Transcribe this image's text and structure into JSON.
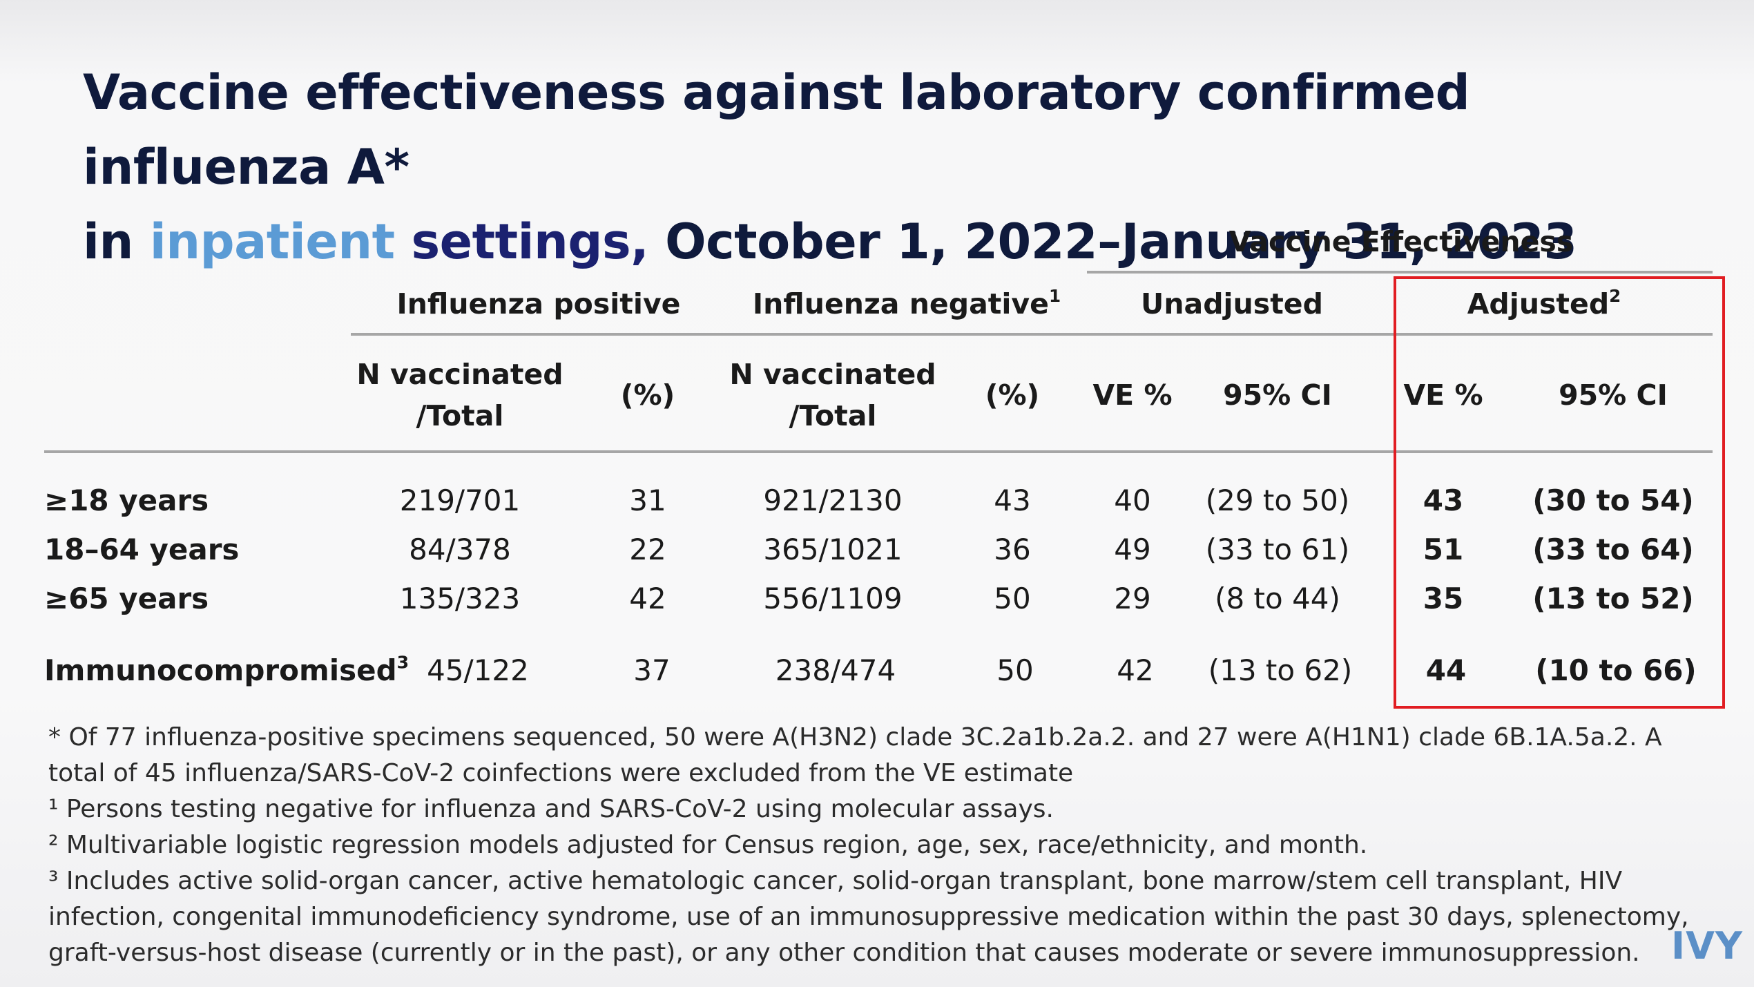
{
  "title": {
    "line1": "Vaccine effectiveness against laboratory confirmed influenza A*",
    "line2_prefix": "in ",
    "line2_highlight": "inpatient",
    "line2_settings": " settings,",
    "line2_suffix": " October 1, 2022–January 31, 2023"
  },
  "headers": {
    "ve_group": "Vaccine Effectiveness",
    "flu_pos": "Influenza positive",
    "flu_neg": "Influenza negative",
    "flu_neg_sup": "1",
    "unadjusted": "Unadjusted",
    "adjusted": "Adjusted",
    "adjusted_sup": "2",
    "n_vacc_line1": "N vaccinated",
    "n_vacc_line2": "/Total",
    "pct": "(%)",
    "ve_pct": "VE %",
    "ci": "95% CI"
  },
  "rows": [
    {
      "label": "≥18 years",
      "label_sup": "",
      "pos": "219/701",
      "pos_pct": "31",
      "neg": "921/2130",
      "neg_pct": "43",
      "unadj_ve": "40",
      "unadj_ci": "(29 to 50)",
      "adj_ve": "43",
      "adj_ci": "(30 to 54)"
    },
    {
      "label": "18–64 years",
      "label_sup": "",
      "pos": "84/378",
      "pos_pct": "22",
      "neg": "365/1021",
      "neg_pct": "36",
      "unadj_ve": "49",
      "unadj_ci": "(33 to 61)",
      "adj_ve": "51",
      "adj_ci": "(33 to 64)"
    },
    {
      "label": "≥65 years",
      "label_sup": "",
      "pos": "135/323",
      "pos_pct": "42",
      "neg": "556/1109",
      "neg_pct": "50",
      "unadj_ve": "29",
      "unadj_ci": "(8 to 44)",
      "adj_ve": "35",
      "adj_ci": "(13 to 52)"
    },
    {
      "label": "Immunocompromised",
      "label_sup": "3",
      "pos": "45/122",
      "pos_pct": "37",
      "neg": "238/474",
      "neg_pct": "50",
      "unadj_ve": "42",
      "unadj_ci": "(13 to 62)",
      "adj_ve": "44",
      "adj_ci": "(10 to 66)"
    }
  ],
  "footnotes": {
    "star": "* Of 77 influenza-positive specimens sequenced, 50 were A(H3N2) clade 3C.2a1b.2a.2. and 27 were A(H1N1) clade 6B.1A.5a.2. A total of 45 influenza/SARS-CoV-2 coinfections were excluded from the VE estimate",
    "one": "¹ Persons testing negative for influenza and SARS-CoV-2 using molecular assays.",
    "two": "² Multivariable logistic regression models adjusted for Census region, age, sex, race/ethnicity, and month.",
    "three": "³ Includes active solid-organ cancer, active hematologic cancer, solid-organ transplant, bone marrow/stem cell transplant, HIV infection, congenital immunodeficiency syndrome, use of an immunosuppressive medication within the past 30 days, splenectomy, graft-versus-host disease (currently or in the past), or any other condition that causes moderate or severe immunosuppression."
  },
  "logo": "IVY",
  "colors": {
    "title": "#0f1a3c",
    "highlight": "#5b9bd5",
    "settings": "#1b2170",
    "box": "#e11d22",
    "logo": "#5b8fc7"
  }
}
